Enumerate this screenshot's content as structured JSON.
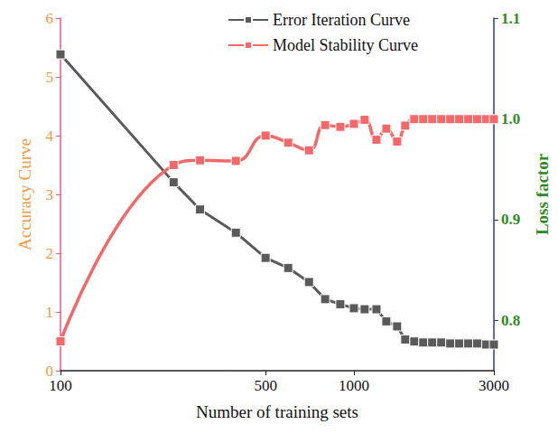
{
  "chart_data": {
    "type": "line",
    "x_label": "Number of training sets",
    "y_label": "Accuracy Curve",
    "y2_label": "Loss factor",
    "log": "x",
    "x": [
      100,
      243,
      299,
      396,
      500,
      597,
      703,
      798,
      899,
      1000,
      1088,
      1194,
      1290,
      1404,
      1496,
      1606,
      1723,
      1849,
      1985,
      2130,
      2285,
      2452,
      2631,
      2824,
      3000
    ],
    "series": [
      {
        "name": "Error Iteration Curve",
        "color": "#5a5a5a",
        "axis": "y2",
        "marker": "square",
        "line_style": "solid",
        "values": [
          1.064,
          0.937,
          0.91,
          0.887,
          0.862,
          0.852,
          0.838,
          0.821,
          0.816,
          0.812,
          0.811,
          0.811,
          0.799,
          0.794,
          0.781,
          0.779,
          0.778,
          0.778,
          0.778,
          0.777,
          0.777,
          0.777,
          0.777,
          0.776,
          0.776
        ]
      },
      {
        "name": "Model Stability Curve",
        "color": "#f4686a",
        "marker": "square",
        "line_style": "smooth",
        "values": [
          0.5,
          3.5,
          3.58,
          3.57,
          4.0,
          3.88,
          3.75,
          4.18,
          4.15,
          4.2,
          4.27,
          3.93,
          4.12,
          3.9,
          4.17,
          4.28,
          4.28,
          4.28,
          4.28,
          4.28,
          4.28,
          4.28,
          4.28,
          4.28,
          4.28
        ]
      }
    ],
    "xlim": [
      100,
      3000
    ],
    "xticks": [
      100,
      500,
      1000,
      3000
    ],
    "ylim": [
      0,
      6
    ],
    "yticks": [
      0,
      1,
      2,
      3,
      4,
      5,
      6
    ],
    "y2lim": [
      0.75,
      1.1
    ],
    "y2ticks": [
      0.8,
      0.9,
      {
        "value": 1.0,
        "label": "1.0"
      },
      1.1
    ],
    "grid": false,
    "legend": "upper right"
  }
}
